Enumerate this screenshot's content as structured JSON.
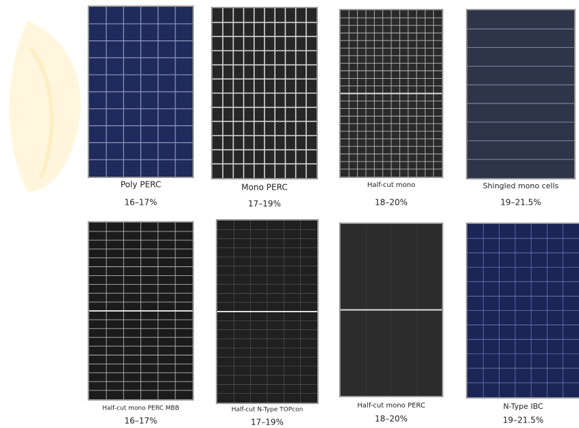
{
  "panels": [
    {
      "name": "Poly PERC",
      "efficiency": "16–17%"
    },
    {
      "name": "Mono PERC",
      "efficiency": "17–19%"
    },
    {
      "name": "Half-cut mono",
      "efficiency": "18–20%"
    },
    {
      "name": "Shingled mono cells",
      "efficiency": "19–21.5%"
    },
    {
      "name": "Half-cut mono PERC MBB",
      "efficiency": "16–17%"
    },
    {
      "name": "Half-cut N-Type TOPcon",
      "efficiency": "17–19%"
    },
    {
      "name": "Half-cut mono PERC",
      "efficiency": "18–20%"
    },
    {
      "name": "N-Type IBC",
      "efficiency": "19–21.5%"
    }
  ]
}
